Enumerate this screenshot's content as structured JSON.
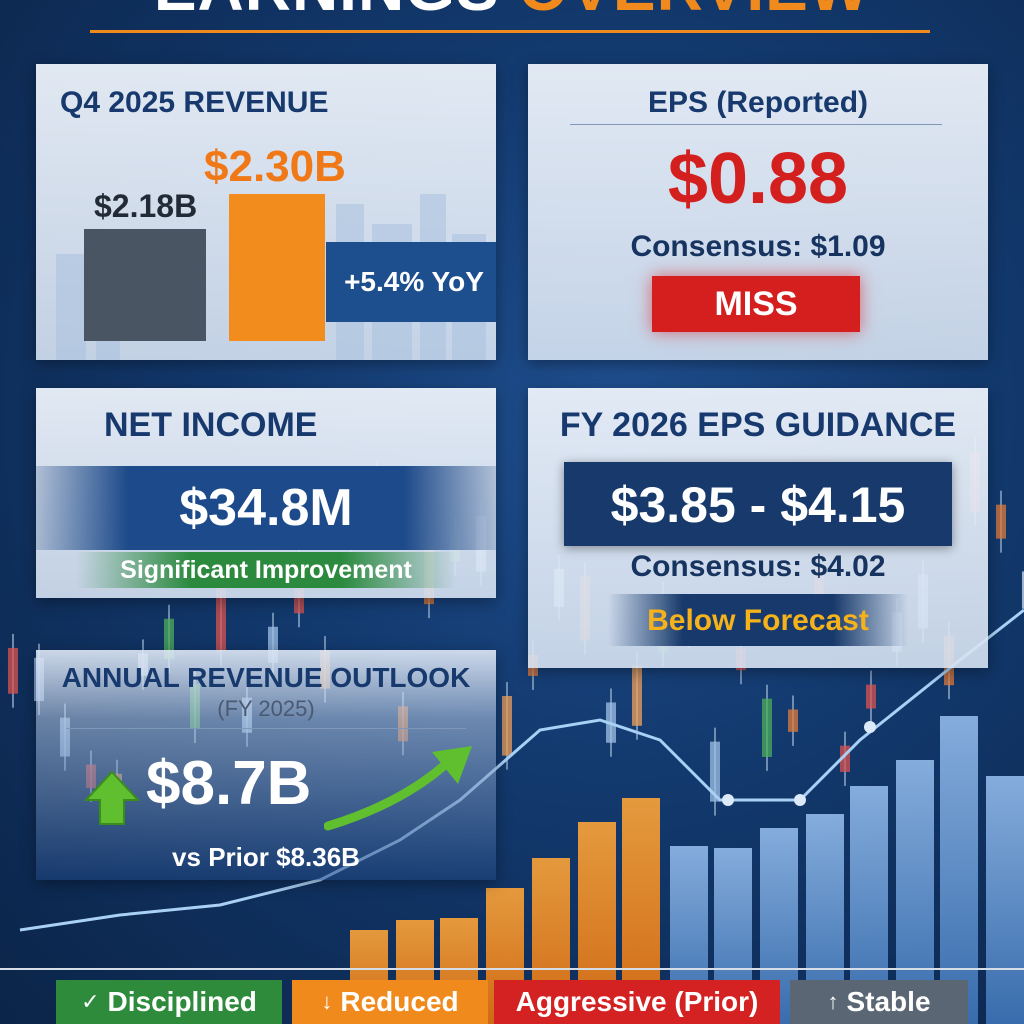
{
  "header": {
    "title_main": "EARNINGS",
    "title_accent": "OVERVIEW"
  },
  "revenue": {
    "title": "Q4 2025 REVENUE",
    "prior_label": "$2.18B",
    "current_label": "$2.30B",
    "prior_value": 2.18,
    "current_value": 2.3,
    "yoy": "+5.4% YoY"
  },
  "eps": {
    "title": "EPS (Reported)",
    "value": "$0.88",
    "consensus": "Consensus: $1.09",
    "status": "MISS"
  },
  "net_income": {
    "title": "NET INCOME",
    "value": "$34.8M",
    "note": "Significant Improvement"
  },
  "guidance": {
    "title": "FY 2026 EPS GUIDANCE",
    "range": "$3.85 - $4.15",
    "consensus": "Consensus: $4.02",
    "note": "Below Forecast"
  },
  "annual": {
    "title": "ANNUAL REVENUE OUTLOOK",
    "subtitle": "(FY 2025)",
    "value": "$8.7B",
    "prior": "vs Prior  $8.36B"
  },
  "footer": {
    "badges": [
      {
        "icon": "check-icon",
        "label": "Disciplined",
        "color": "#2e8b3c"
      },
      {
        "icon": "down-arrow-icon",
        "label": "Reduced",
        "color": "#f08a1c"
      },
      {
        "icon": "",
        "label": "Aggressive (Prior)",
        "color": "#d42222"
      },
      {
        "icon": "up-arrow-icon",
        "label": "Stable",
        "color": "#5b6674"
      }
    ]
  },
  "colors": {
    "accent": "#f08a1c",
    "navy": "#17396d",
    "red": "#d41f1f",
    "green": "#2e8b3c",
    "gold": "#f5b21a"
  }
}
